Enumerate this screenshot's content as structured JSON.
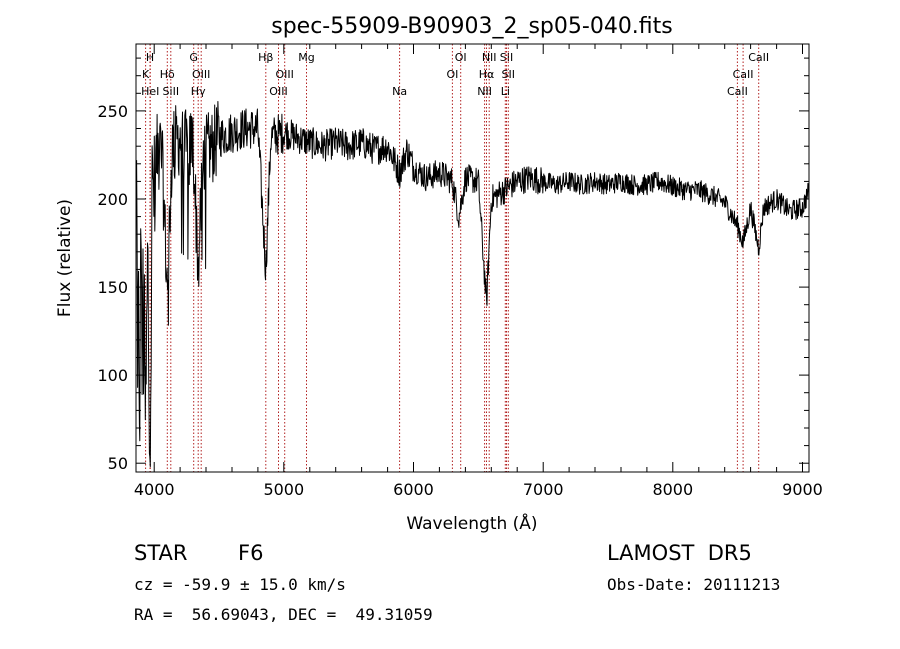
{
  "chart_data": {
    "type": "line",
    "title": "spec-55909-B90903_2_sp05-040.fits",
    "xlabel": "Wavelength (Å)",
    "ylabel": "Flux (relative)",
    "xlim": [
      3860,
      9050
    ],
    "ylim": [
      45,
      288
    ],
    "xticks": [
      4000,
      5000,
      6000,
      7000,
      8000,
      9000
    ],
    "yticks": [
      50,
      100,
      150,
      200,
      250
    ],
    "grid": false,
    "line_color": "#000000",
    "marker_color": "#b22222",
    "spectrum_anchors": [
      [
        3870,
        60
      ],
      [
        3880,
        130
      ],
      [
        3890,
        90
      ],
      [
        3900,
        175
      ],
      [
        3920,
        120
      ],
      [
        3935,
        70
      ],
      [
        3950,
        160
      ],
      [
        3970,
        80
      ],
      [
        3985,
        200
      ],
      [
        4000,
        215
      ],
      [
        4030,
        230
      ],
      [
        4060,
        225
      ],
      [
        4101,
        150
      ],
      [
        4140,
        230
      ],
      [
        4200,
        235
      ],
      [
        4250,
        228
      ],
      [
        4300,
        232
      ],
      [
        4340,
        160
      ],
      [
        4380,
        225
      ],
      [
        4450,
        230
      ],
      [
        4500,
        235
      ],
      [
        4600,
        238
      ],
      [
        4700,
        240
      ],
      [
        4800,
        240
      ],
      [
        4861,
        160
      ],
      [
        4900,
        235
      ],
      [
        5000,
        238
      ],
      [
        5100,
        235
      ],
      [
        5200,
        232
      ],
      [
        5300,
        230
      ],
      [
        5400,
        232
      ],
      [
        5500,
        230
      ],
      [
        5600,
        232
      ],
      [
        5700,
        228
      ],
      [
        5800,
        230
      ],
      [
        5893,
        215
      ],
      [
        5950,
        228
      ],
      [
        6000,
        218
      ],
      [
        6100,
        212
      ],
      [
        6200,
        215
      ],
      [
        6300,
        210
      ],
      [
        6350,
        190
      ],
      [
        6400,
        212
      ],
      [
        6500,
        210
      ],
      [
        6563,
        140
      ],
      [
        6600,
        200
      ],
      [
        6700,
        205
      ],
      [
        6800,
        210
      ],
      [
        6900,
        212
      ],
      [
        7000,
        210
      ],
      [
        7100,
        208
      ],
      [
        7200,
        210
      ],
      [
        7300,
        208
      ],
      [
        7400,
        210
      ],
      [
        7500,
        208
      ],
      [
        7600,
        210
      ],
      [
        7700,
        208
      ],
      [
        7800,
        208
      ],
      [
        7900,
        210
      ],
      [
        8000,
        207
      ],
      [
        8100,
        205
      ],
      [
        8200,
        205
      ],
      [
        8300,
        202
      ],
      [
        8400,
        198
      ],
      [
        8498,
        185
      ],
      [
        8542,
        175
      ],
      [
        8600,
        195
      ],
      [
        8662,
        172
      ],
      [
        8700,
        195
      ],
      [
        8800,
        200
      ],
      [
        8900,
        193
      ],
      [
        9000,
        195
      ],
      [
        9050,
        205
      ]
    ],
    "lines": [
      {
        "wavelength": 3970,
        "label": "HeI",
        "row": 3
      },
      {
        "wavelength": 3934,
        "label": "K",
        "row": 2
      },
      {
        "wavelength": 3968,
        "label": "H",
        "row": 1
      },
      {
        "wavelength": 4101,
        "label": "Hδ",
        "row": 2
      },
      {
        "wavelength": 4128,
        "label": "SiII",
        "row": 3
      },
      {
        "wavelength": 4305,
        "label": "G",
        "row": 1
      },
      {
        "wavelength": 4363,
        "label": "OIII",
        "row": 2
      },
      {
        "wavelength": 4340,
        "label": "Hγ",
        "row": 3
      },
      {
        "wavelength": 4861,
        "label": "Hβ",
        "row": 1
      },
      {
        "wavelength": 5007,
        "label": "OIII",
        "row": 2
      },
      {
        "wavelength": 4959,
        "label": "OIII",
        "row": 3
      },
      {
        "wavelength": 5175,
        "label": "Mg",
        "row": 1
      },
      {
        "wavelength": 5893,
        "label": "Na",
        "row": 3
      },
      {
        "wavelength": 6364,
        "label": "OI",
        "row": 1
      },
      {
        "wavelength": 6300,
        "label": "OI",
        "row": 2
      },
      {
        "wavelength": 6584,
        "label": "NII",
        "row": 1
      },
      {
        "wavelength": 6563,
        "label": "Hα",
        "row": 2
      },
      {
        "wavelength": 6548,
        "label": "NII",
        "row": 3
      },
      {
        "wavelength": 6717,
        "label": "SII",
        "row": 1
      },
      {
        "wavelength": 6731,
        "label": "SII",
        "row": 2
      },
      {
        "wavelength": 6708,
        "label": "Li",
        "row": 3
      },
      {
        "wavelength": 8662,
        "label": "CaII",
        "row": 1
      },
      {
        "wavelength": 8542,
        "label": "CaII",
        "row": 2
      },
      {
        "wavelength": 8498,
        "label": "CaII",
        "row": 3
      }
    ]
  },
  "info": {
    "class": "STAR",
    "subclass": "F6",
    "survey": "LAMOST  DR5",
    "cz": "cz = -59.9 ± 15.0 km/s",
    "obs_date": "Obs-Date: 20111213",
    "radec": "RA =  56.69043, DEC =  49.31059"
  }
}
